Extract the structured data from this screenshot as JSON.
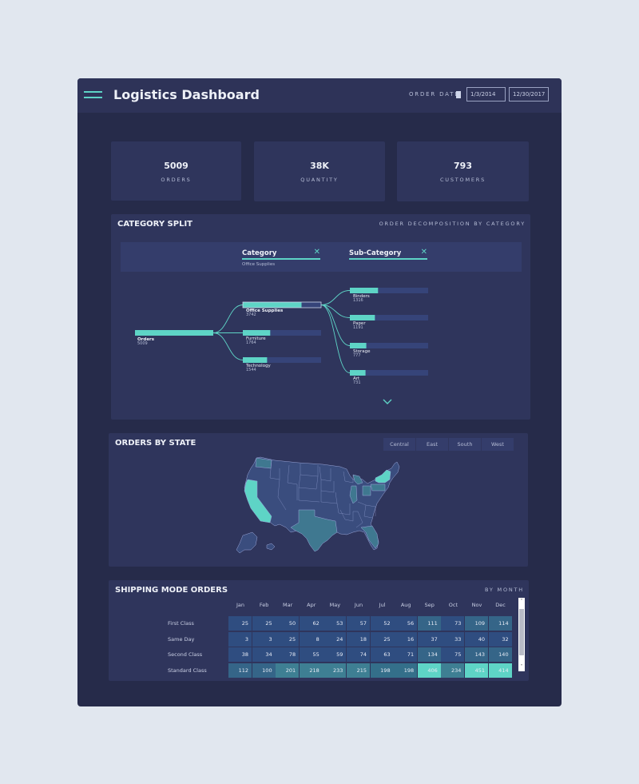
{
  "header": {
    "title": "Logistics Dashboard",
    "order_date_label": "ORDER DATE",
    "date_from": "1/3/2014",
    "date_to": "12/30/2017"
  },
  "kpis": [
    {
      "value": "5009",
      "label": "ORDERS"
    },
    {
      "value": "38K",
      "label": "QUANTITY"
    },
    {
      "value": "793",
      "label": "CUSTOMERS"
    }
  ],
  "category_split": {
    "title": "CATEGORY SPLIT",
    "subtitle": "ORDER DECOMPOSITION BY CATEGORY",
    "chips": [
      {
        "name": "Category",
        "selection": "Office Supplies"
      },
      {
        "name": "Sub-Category",
        "selection": ""
      }
    ],
    "root": {
      "label": "Orders",
      "value": "5009"
    },
    "categories": [
      {
        "label": "Office Supplies",
        "value": "3742",
        "share": 0.75,
        "selected": true
      },
      {
        "label": "Furniture",
        "value": "1764",
        "share": 0.35
      },
      {
        "label": "Technology",
        "value": "1544",
        "share": 0.31
      }
    ],
    "subcategories": [
      {
        "label": "Binders",
        "value": "1316",
        "share": 0.36
      },
      {
        "label": "Paper",
        "value": "1191",
        "share": 0.32
      },
      {
        "label": "Storage",
        "value": "777",
        "share": 0.21
      },
      {
        "label": "Art",
        "value": "731",
        "share": 0.2
      }
    ],
    "expand_icon": "chevron-down-icon"
  },
  "orders_by_state": {
    "title": "ORDERS BY STATE",
    "regions": [
      "Central",
      "East",
      "South",
      "West"
    ],
    "highlight_color": "#5ed4c6",
    "mid_color": "#3f7890",
    "base_color": "#3a4d7e"
  },
  "shipping": {
    "title": "SHIPPING MODE ORDERS",
    "subtitle": "BY MONTH",
    "months": [
      "Jan",
      "Feb",
      "Mar",
      "Apr",
      "May",
      "Jun",
      "Jul",
      "Aug",
      "Sep",
      "Oct",
      "Nov",
      "Dec"
    ],
    "rows": [
      {
        "label": "First Class",
        "values": [
          25,
          25,
          50,
          62,
          53,
          57,
          52,
          56,
          111,
          73,
          109,
          114
        ]
      },
      {
        "label": "Same Day",
        "values": [
          3,
          3,
          25,
          8,
          24,
          18,
          25,
          16,
          37,
          33,
          40,
          32
        ]
      },
      {
        "label": "Second Class",
        "values": [
          38,
          34,
          78,
          55,
          59,
          74,
          63,
          71,
          134,
          75,
          143,
          140
        ]
      },
      {
        "label": "Standard Class",
        "values": [
          112,
          100,
          201,
          218,
          233,
          215,
          198,
          198,
          406,
          234,
          451,
          414
        ]
      }
    ]
  }
}
